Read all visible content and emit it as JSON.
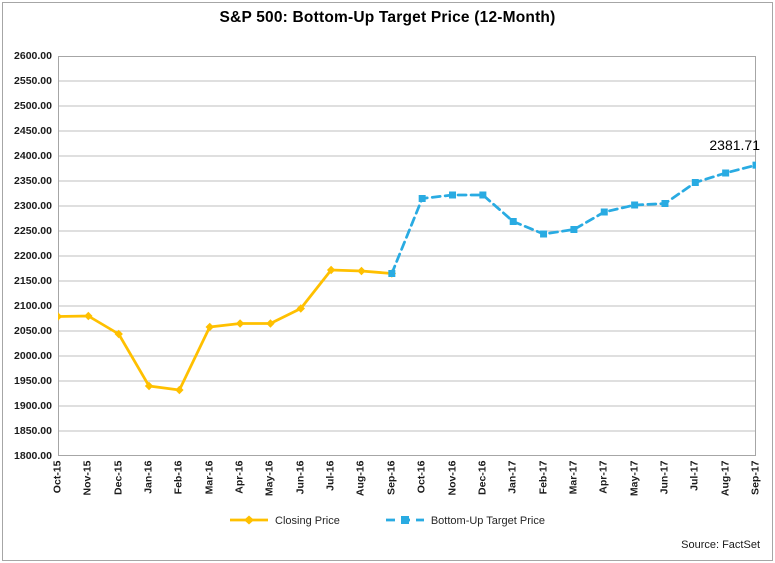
{
  "header": {
    "title": "S&P 500: Bottom-Up Target Price (12-Month)"
  },
  "chart_data": {
    "type": "line",
    "title": "S&P 500: Bottom-Up Target Price (12-Month)",
    "categories": [
      "Oct-15",
      "Nov-15",
      "Dec-15",
      "Jan-16",
      "Feb-16",
      "Mar-16",
      "Apr-16",
      "May-16",
      "Jun-16",
      "Jul-16",
      "Aug-16",
      "Sep-16",
      "Oct-16",
      "Nov-16",
      "Dec-16",
      "Jan-17",
      "Feb-17",
      "Mar-17",
      "Apr-17",
      "May-17",
      "Jun-17",
      "Jul-17",
      "Aug-17",
      "Sep-17"
    ],
    "series": [
      {
        "name": "Closing Price",
        "color": "#FFC000",
        "line_style": "solid",
        "marker": "diamond",
        "values": [
          2079,
          2080,
          2044,
          1940,
          1932,
          2058,
          2065,
          2065,
          2095,
          2172,
          2170,
          2165,
          null,
          null,
          null,
          null,
          null,
          null,
          null,
          null,
          null,
          null,
          null,
          null
        ]
      },
      {
        "name": "Bottom-Up Target Price",
        "color": "#29ABE2",
        "line_style": "dashed",
        "marker": "square",
        "values": [
          null,
          null,
          null,
          null,
          null,
          null,
          null,
          null,
          null,
          null,
          null,
          2165,
          2315,
          2322,
          2322,
          2269,
          2244,
          2253,
          2288,
          2302,
          2305,
          2347,
          2366,
          2381.71
        ]
      }
    ],
    "ylim": [
      1800,
      2600
    ],
    "ytick_step": 50,
    "yticks": [
      "2600.00",
      "2550.00",
      "2500.00",
      "2450.00",
      "2400.00",
      "2350.00",
      "2300.00",
      "2250.00",
      "2200.00",
      "2150.00",
      "2100.00",
      "2050.00",
      "2000.00",
      "1950.00",
      "1900.00",
      "1850.00",
      "1800.00"
    ],
    "grid": true,
    "legend_position": "bottom",
    "annotation": {
      "text": "2381.71",
      "series": "Bottom-Up Target Price",
      "category": "Sep-17"
    }
  },
  "annotation": {
    "value": "2381.71"
  },
  "legend": {
    "items": [
      {
        "label": "Closing Price"
      },
      {
        "label": "Bottom-Up Target Price"
      }
    ]
  },
  "footer": {
    "source": "Source: FactSet"
  },
  "colors": {
    "closing_series": "#FFC000",
    "target_series": "#29ABE2",
    "gridline": "#BFBFBF",
    "plot_border": "#A6A6A6"
  }
}
